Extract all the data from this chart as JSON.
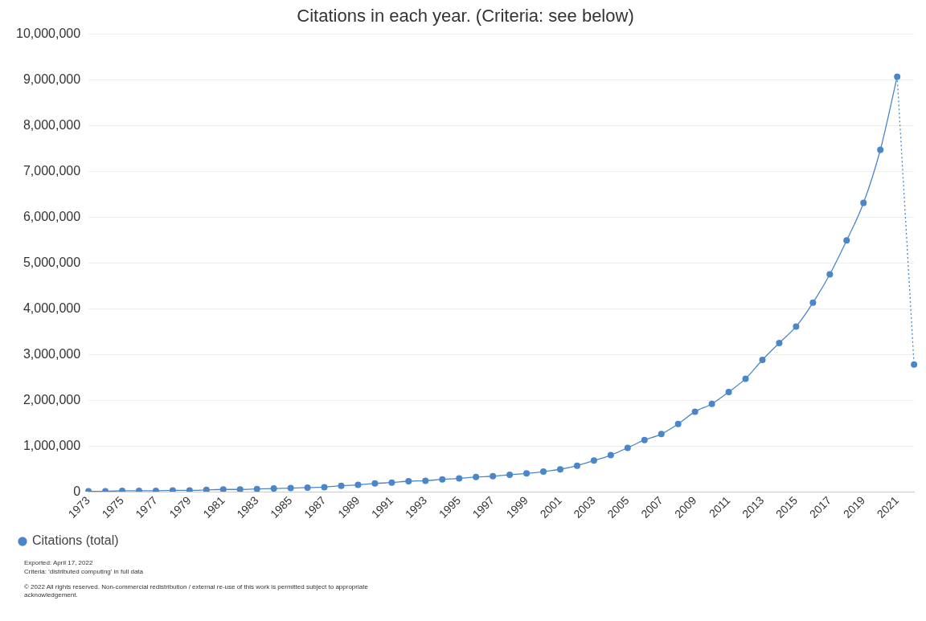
{
  "chart_data": {
    "type": "line",
    "title": "Citations in each year. (Criteria: see below)",
    "categories": [
      "1973",
      null,
      "1975",
      null,
      "1977",
      null,
      "1979",
      null,
      "1981",
      null,
      "1983",
      null,
      "1985",
      null,
      "1987",
      null,
      "1989",
      null,
      "1991",
      null,
      "1993",
      null,
      "1995",
      null,
      "1997",
      null,
      "1999",
      null,
      "2001",
      null,
      "2003",
      null,
      "2005",
      null,
      "2007",
      null,
      "2009",
      null,
      "2011",
      null,
      "2013",
      null,
      "2015",
      null,
      "2017",
      null,
      "2019",
      null,
      "2021",
      null
    ],
    "series": [
      {
        "name": "Citations (total)",
        "color": "#4a86c8",
        "line_style": "solid",
        "marker": "circle",
        "values": [
          10000,
          10000,
          20000,
          20000,
          20000,
          30000,
          30000,
          40000,
          50000,
          50000,
          60000,
          70000,
          80000,
          90000,
          100000,
          130000,
          150000,
          180000,
          200000,
          230000,
          240000,
          270000,
          290000,
          320000,
          340000,
          370000,
          400000,
          440000,
          490000,
          570000,
          680000,
          800000,
          960000,
          1130000,
          1260000,
          1480000,
          1750000,
          1920000,
          2180000,
          2470000,
          2880000,
          3250000,
          3610000,
          4130000,
          4750000,
          5490000,
          6310000,
          7470000,
          9070000,
          null
        ]
      },
      {
        "color": "#4a86c8",
        "line_style": "dotted",
        "marker": "circle",
        "values": [
          null,
          null,
          null,
          null,
          null,
          null,
          null,
          null,
          null,
          null,
          null,
          null,
          null,
          null,
          null,
          null,
          null,
          null,
          null,
          null,
          null,
          null,
          null,
          null,
          null,
          null,
          null,
          null,
          null,
          null,
          null,
          null,
          null,
          null,
          null,
          null,
          null,
          null,
          null,
          null,
          null,
          null,
          null,
          null,
          null,
          null,
          null,
          null,
          9070000,
          2780000
        ]
      }
    ],
    "ylim": [
      0,
      10000000
    ],
    "yticks": [
      0,
      {
        "value": 1000000,
        "label": "1,000,000"
      },
      {
        "value": 2000000,
        "label": "2,000,000"
      },
      {
        "value": 3000000,
        "label": "3,000,000"
      },
      {
        "value": 4000000,
        "label": "4,000,000"
      },
      {
        "value": 5000000,
        "label": "5,000,000"
      },
      {
        "value": 6000000,
        "label": "6,000,000"
      },
      {
        "value": 7000000,
        "label": "7,000,000"
      },
      {
        "value": 8000000,
        "label": "8,000,000"
      },
      {
        "value": 9000000,
        "label": "9,000,000"
      },
      {
        "value": 10000000,
        "label": "10,000,000"
      }
    ],
    "grid": "y",
    "legend": "bottom left",
    "annotations": [
      "Exported: April 17, 2022",
      "Criteria: 'distributed computing' in full data",
      "© 2022 All rights reserved. Non-commercial redistribution / external re-use of this work is permitted subject to appropriate acknowledgement."
    ]
  }
}
